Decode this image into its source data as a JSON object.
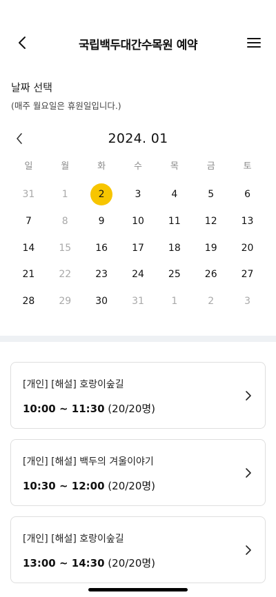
{
  "header": {
    "title": "국립백두대간수목원 예약"
  },
  "date_section": {
    "title": "날짜 선택",
    "note": "(매주 월요일은 휴원일입니다.)"
  },
  "calendar": {
    "month": "2024. 01",
    "weekdays": [
      "일",
      "월",
      "화",
      "수",
      "목",
      "금",
      "토"
    ],
    "days": [
      {
        "d": "31",
        "muted": true
      },
      {
        "d": "1",
        "muted": true
      },
      {
        "d": "2",
        "selected": true
      },
      {
        "d": "3"
      },
      {
        "d": "4"
      },
      {
        "d": "5"
      },
      {
        "d": "6"
      },
      {
        "d": "7"
      },
      {
        "d": "8",
        "muted": true
      },
      {
        "d": "9"
      },
      {
        "d": "10"
      },
      {
        "d": "11"
      },
      {
        "d": "12"
      },
      {
        "d": "13"
      },
      {
        "d": "14"
      },
      {
        "d": "15",
        "muted": true
      },
      {
        "d": "16"
      },
      {
        "d": "17"
      },
      {
        "d": "18"
      },
      {
        "d": "19"
      },
      {
        "d": "20"
      },
      {
        "d": "21"
      },
      {
        "d": "22",
        "muted": true
      },
      {
        "d": "23"
      },
      {
        "d": "24"
      },
      {
        "d": "25"
      },
      {
        "d": "26"
      },
      {
        "d": "27"
      },
      {
        "d": "28"
      },
      {
        "d": "29",
        "muted": true
      },
      {
        "d": "30"
      },
      {
        "d": "31",
        "muted": true
      },
      {
        "d": "1",
        "muted": true
      },
      {
        "d": "2",
        "muted": true
      },
      {
        "d": "3",
        "muted": true
      }
    ],
    "selected_color": "#f7c500"
  },
  "slots": [
    {
      "name": "[개인] [해설] 호랑이숲길",
      "time": "10:00 ~ 11:30",
      "capacity": "(20/20명)"
    },
    {
      "name": "[개인] [해설] 백두의 겨울이야기",
      "time": "10:30 ~ 12:00",
      "capacity": "(20/20명)"
    },
    {
      "name": "[개인] [해설] 호랑이숲길",
      "time": "13:00 ~ 14:30",
      "capacity": "(20/20명)"
    }
  ]
}
